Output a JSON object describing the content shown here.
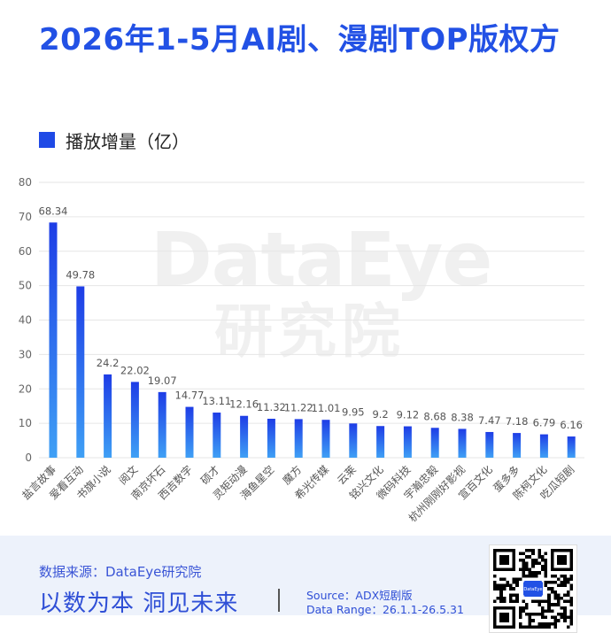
{
  "title": "2026年1-5月AI剧、漫剧TOP版权方",
  "legend_label": "播放增量（亿）",
  "watermark": {
    "brand": "DataEye",
    "sub": "研究院"
  },
  "chart_data": {
    "type": "bar",
    "categories": [
      "盐言故事",
      "爱看互动",
      "书旗小说",
      "阅文",
      "南京坏石",
      "西吉数字",
      "硕才",
      "灵矩动漫",
      "海鱼星空",
      "魔方",
      "希光传媒",
      "云莱",
      "铭兴文化",
      "微码科技",
      "宇瀚忠毅",
      "杭州刚刚好影视",
      "宣百文化",
      "蛋多多",
      "陈柯文化",
      "吃瓜短剧"
    ],
    "series": [
      {
        "name": "播放增量（亿）",
        "values": [
          68.34,
          49.78,
          24.2,
          22.02,
          19.07,
          14.77,
          13.11,
          12.16,
          11.32,
          11.22,
          11.01,
          9.95,
          9.2,
          9.12,
          8.68,
          8.38,
          7.47,
          7.18,
          6.79,
          6.16
        ],
        "labels": [
          "68.34",
          "49.78",
          "24.2",
          "22.02",
          "19.07",
          "14.77",
          "13.11",
          "12.16",
          "11.32",
          "11.22",
          "11.01",
          "9.95",
          "9.2",
          "9.12",
          "8.68",
          "8.38",
          "7.47",
          "7.18",
          "6.79",
          "6.16"
        ]
      }
    ],
    "ylim": [
      0,
      80
    ],
    "yticks": [
      "0",
      "10",
      "20",
      "30",
      "40",
      "50",
      "60",
      "70",
      "80"
    ],
    "grid": true,
    "legend_position": "top-left",
    "colors": {
      "bar_top": "#1e3de6",
      "bar_bottom": "#3fa0f5",
      "grid": "#e6e6e6",
      "label": "#555555"
    }
  },
  "footer": {
    "source": "数据来源：DataEye研究院",
    "slogan": "以数为本 洞见未来",
    "meta_source": "Source：ADX短剧版",
    "meta_range": "Data Range：26.1.1-26.5.31",
    "qr_label": "DataEye"
  }
}
